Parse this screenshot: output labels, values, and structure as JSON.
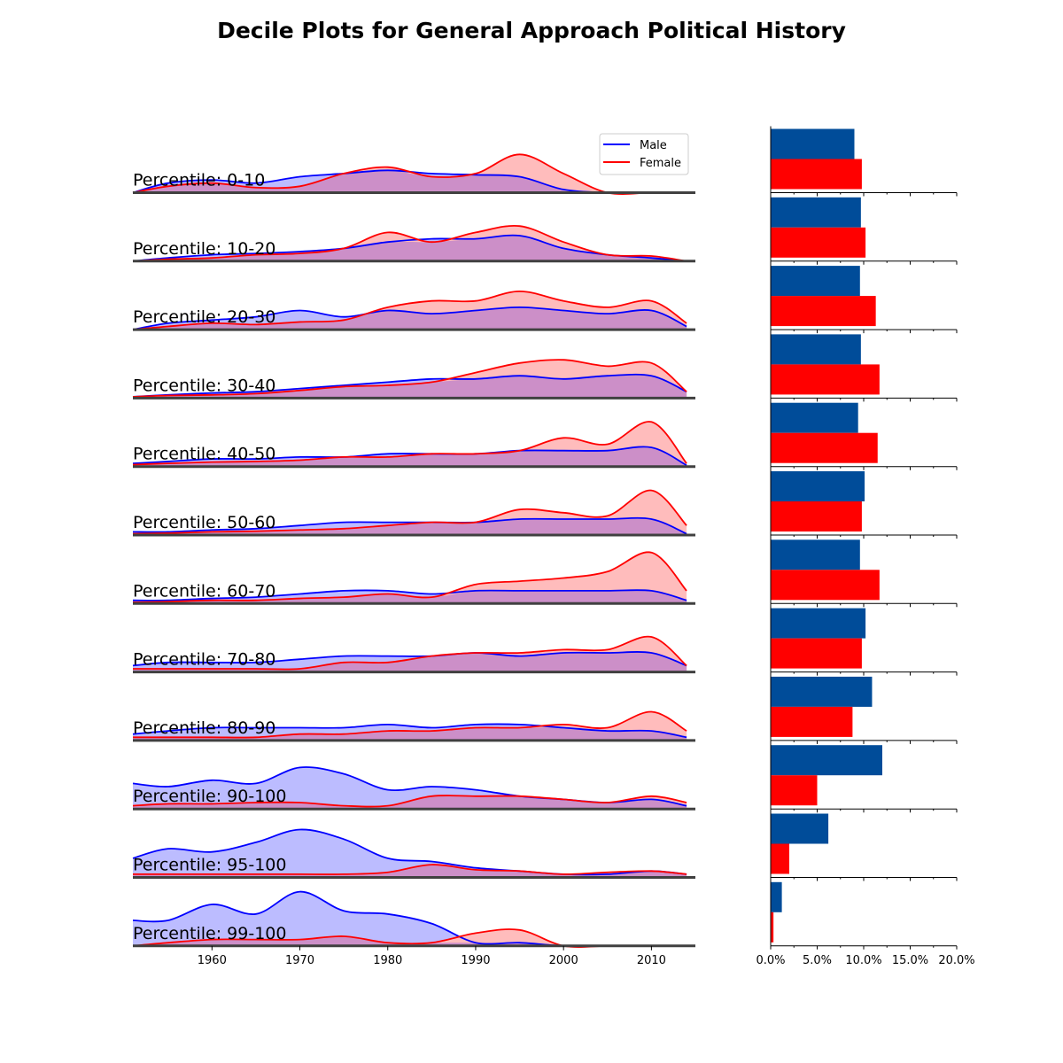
{
  "chart_data": {
    "type": "area",
    "title": "Decile Plots for General Approach Political History",
    "legend": {
      "placement": "top-right",
      "entries": [
        "Male",
        "Female"
      ]
    },
    "colors": {
      "male_line": "#0000ff",
      "male_fill": "#bcbcff",
      "female_line": "#ff0000",
      "female_fill": "#ffbcbc",
      "overlap_fill": "#cc8fc8",
      "bar_male": "#004c99",
      "bar_female": "#ff0000",
      "baseline": "#404040"
    },
    "density_x": [
      1951,
      1955,
      1960,
      1965,
      1970,
      1975,
      1980,
      1985,
      1990,
      1995,
      2000,
      2005,
      2010,
      2014
    ],
    "density_x_axis": {
      "xlim": [
        1951,
        2015
      ],
      "ticks": [
        1960,
        1970,
        1980,
        1990,
        2000,
        2010
      ]
    },
    "share_axis": {
      "xlim": [
        0,
        20
      ],
      "ticks": [
        "0.0%",
        "5.0%",
        "10.0%",
        "15.0%",
        "20.0%"
      ]
    },
    "rows": [
      {
        "label": "Percentile: 0-10",
        "male": [
          0.0,
          0.15,
          0.2,
          0.15,
          0.25,
          0.3,
          0.35,
          0.3,
          0.28,
          0.25,
          0.05,
          0.0,
          0.0,
          0.0
        ],
        "female": [
          0.0,
          0.1,
          0.15,
          0.08,
          0.1,
          0.3,
          0.4,
          0.25,
          0.3,
          0.6,
          0.3,
          0.0,
          0.0,
          0.0
        ],
        "share_male": 9.0,
        "share_female": 9.8
      },
      {
        "label": "Percentile: 10-20",
        "male": [
          0.0,
          0.05,
          0.1,
          0.12,
          0.15,
          0.2,
          0.3,
          0.35,
          0.35,
          0.4,
          0.2,
          0.1,
          0.05,
          0.0
        ],
        "female": [
          0.0,
          0.03,
          0.05,
          0.1,
          0.12,
          0.2,
          0.45,
          0.3,
          0.45,
          0.55,
          0.3,
          0.1,
          0.08,
          0.0
        ],
        "share_male": 9.7,
        "share_female": 10.2
      },
      {
        "label": "Percentile: 20-30",
        "male": [
          0.0,
          0.1,
          0.15,
          0.2,
          0.3,
          0.2,
          0.3,
          0.25,
          0.3,
          0.35,
          0.3,
          0.25,
          0.3,
          0.05
        ],
        "female": [
          0.0,
          0.05,
          0.1,
          0.08,
          0.12,
          0.15,
          0.35,
          0.45,
          0.45,
          0.6,
          0.45,
          0.35,
          0.45,
          0.1
        ],
        "share_male": 9.6,
        "share_female": 11.3
      },
      {
        "label": "Percentile: 30-40",
        "male": [
          0.02,
          0.05,
          0.08,
          0.1,
          0.15,
          0.2,
          0.25,
          0.3,
          0.3,
          0.35,
          0.3,
          0.35,
          0.35,
          0.1
        ],
        "female": [
          0.02,
          0.04,
          0.05,
          0.07,
          0.12,
          0.18,
          0.2,
          0.25,
          0.4,
          0.55,
          0.6,
          0.5,
          0.55,
          0.1
        ],
        "share_male": 9.7,
        "share_female": 11.7
      },
      {
        "label": "Percentile: 40-50",
        "male": [
          0.05,
          0.08,
          0.12,
          0.12,
          0.15,
          0.15,
          0.2,
          0.2,
          0.2,
          0.25,
          0.25,
          0.25,
          0.3,
          0.02
        ],
        "female": [
          0.03,
          0.05,
          0.07,
          0.08,
          0.1,
          0.15,
          0.15,
          0.2,
          0.2,
          0.25,
          0.45,
          0.35,
          0.7,
          0.05
        ],
        "share_male": 9.4,
        "share_female": 11.5
      },
      {
        "label": "Percentile: 50-60",
        "male": [
          0.05,
          0.05,
          0.08,
          0.1,
          0.15,
          0.2,
          0.2,
          0.2,
          0.2,
          0.25,
          0.25,
          0.25,
          0.25,
          0.02
        ],
        "female": [
          0.02,
          0.03,
          0.05,
          0.06,
          0.08,
          0.1,
          0.15,
          0.2,
          0.2,
          0.4,
          0.35,
          0.3,
          0.7,
          0.15
        ],
        "share_male": 10.1,
        "share_female": 9.8
      },
      {
        "label": "Percentile: 60-70",
        "male": [
          0.05,
          0.05,
          0.08,
          0.1,
          0.15,
          0.2,
          0.2,
          0.15,
          0.2,
          0.2,
          0.2,
          0.2,
          0.2,
          0.05
        ],
        "female": [
          0.02,
          0.03,
          0.05,
          0.05,
          0.08,
          0.1,
          0.15,
          0.1,
          0.3,
          0.35,
          0.4,
          0.5,
          0.8,
          0.2
        ],
        "share_male": 9.6,
        "share_female": 11.7
      },
      {
        "label": "Percentile: 70-80",
        "male": [
          0.1,
          0.15,
          0.15,
          0.15,
          0.2,
          0.25,
          0.25,
          0.25,
          0.3,
          0.25,
          0.3,
          0.3,
          0.3,
          0.1
        ],
        "female": [
          0.05,
          0.05,
          0.05,
          0.05,
          0.05,
          0.15,
          0.15,
          0.25,
          0.3,
          0.3,
          0.35,
          0.35,
          0.55,
          0.1
        ],
        "share_male": 10.2,
        "share_female": 9.8
      },
      {
        "label": "Percentile: 80-90",
        "male": [
          0.1,
          0.15,
          0.2,
          0.2,
          0.2,
          0.2,
          0.25,
          0.2,
          0.25,
          0.25,
          0.2,
          0.15,
          0.15,
          0.05
        ],
        "female": [
          0.05,
          0.05,
          0.05,
          0.05,
          0.1,
          0.1,
          0.15,
          0.15,
          0.2,
          0.2,
          0.25,
          0.2,
          0.45,
          0.15
        ],
        "share_male": 10.9,
        "share_female": 8.8
      },
      {
        "label": "Percentile: 90-100",
        "male": [
          0.4,
          0.35,
          0.45,
          0.4,
          0.65,
          0.55,
          0.3,
          0.35,
          0.3,
          0.2,
          0.15,
          0.1,
          0.15,
          0.05
        ],
        "female": [
          0.05,
          0.08,
          0.08,
          0.1,
          0.1,
          0.05,
          0.05,
          0.2,
          0.2,
          0.2,
          0.15,
          0.1,
          0.2,
          0.1
        ],
        "share_male": 12.0,
        "share_female": 5.0
      },
      {
        "label": "Percentile: 95-100",
        "male": [
          0.3,
          0.45,
          0.4,
          0.55,
          0.75,
          0.6,
          0.3,
          0.25,
          0.15,
          0.1,
          0.05,
          0.05,
          0.1,
          0.05
        ],
        "female": [
          0.05,
          0.05,
          0.05,
          0.05,
          0.05,
          0.05,
          0.08,
          0.2,
          0.12,
          0.1,
          0.05,
          0.08,
          0.1,
          0.05
        ],
        "share_male": 6.2,
        "share_female": 2.0
      },
      {
        "label": "Percentile: 99-100",
        "male": [
          0.4,
          0.4,
          0.65,
          0.5,
          0.85,
          0.55,
          0.5,
          0.35,
          0.05,
          0.05,
          0.0,
          0.0,
          0.0,
          0.0
        ],
        "female": [
          0.0,
          0.05,
          0.1,
          0.1,
          0.1,
          0.15,
          0.05,
          0.05,
          0.2,
          0.25,
          0.0,
          0.0,
          0.0,
          0.0
        ],
        "share_male": 1.2,
        "share_female": 0.3
      }
    ]
  }
}
